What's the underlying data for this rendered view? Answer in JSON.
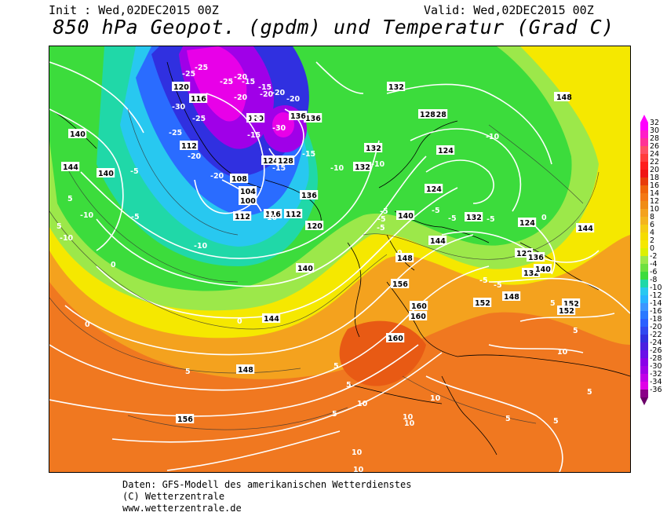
{
  "header": {
    "init": "Init : Wed,02DEC2015 00Z",
    "valid": "Valid: Wed,02DEC2015 00Z",
    "title": "850 hPa Geopot. (gpdm) und Temperatur (Grad C)"
  },
  "footer": {
    "line1": "Daten: GFS-Modell des amerikanischen Wetterdienstes",
    "line2": "(C) Wetterzentrale",
    "line3": "www.wetterzentrale.de"
  },
  "colors": {
    "ocean_dark": "#f07820",
    "orange": "#f4a21e",
    "yellow": "#f5e800",
    "lightgreen": "#9ce84a",
    "green": "#3cdc3c",
    "teal": "#20d8a8",
    "cyan": "#28c8f0",
    "blue": "#2a6cff",
    "darkblue": "#3030e0",
    "purple": "#a000e8",
    "magenta": "#e800e8"
  },
  "map": {
    "geopotential_labels": [
      "148",
      "140",
      "144",
      "136",
      "140",
      "136",
      "132",
      "128",
      "124",
      "120",
      "116",
      "120",
      "112",
      "108",
      "104",
      "100",
      "112",
      "116",
      "112",
      "124",
      "128",
      "136",
      "132",
      "120",
      "140",
      "132",
      "124",
      "128",
      "132",
      "124",
      "128",
      "136",
      "132",
      "140",
      "148",
      "144",
      "140",
      "144",
      "148",
      "152",
      "144",
      "148",
      "156",
      "160",
      "160",
      "152",
      "152",
      "156",
      "160"
    ],
    "temperature_labels": [
      "-25",
      "-25",
      "-20",
      "-15",
      "-15",
      "-20",
      "-25",
      "-20",
      "-30",
      "-25",
      "-25",
      "-20",
      "-30",
      "-20",
      "-20",
      "-15",
      "-15",
      "-10",
      "-10",
      "-10",
      "-10",
      "-5",
      "-5",
      "-10",
      "-10",
      "-5",
      "-5",
      "-5",
      "-5",
      "0",
      "0",
      "0",
      "0",
      "5",
      "5",
      "5",
      "5",
      "5",
      "5",
      "10",
      "10",
      "10",
      "10",
      "10",
      "10",
      "5",
      "5",
      "5",
      "5",
      "10",
      "5",
      "-15",
      "-10",
      "-20",
      "-20",
      "-5",
      "-5",
      "-5",
      "-5",
      "0"
    ]
  },
  "scale": {
    "labels": [
      "32",
      "30",
      "28",
      "26",
      "24",
      "22",
      "20",
      "18",
      "16",
      "14",
      "12",
      "10",
      "8",
      "6",
      "4",
      "2",
      "0",
      "-2",
      "-4",
      "-6",
      "-8",
      "-10",
      "-12",
      "-14",
      "-16",
      "-18",
      "-20",
      "-22",
      "-24",
      "-26",
      "-28",
      "-30",
      "-32",
      "-34",
      "-36"
    ],
    "colors": [
      "#ff00ff",
      "#ff1ec8",
      "#ff3296",
      "#ff5064",
      "#ff3c3c",
      "#ff1e1e",
      "#f01414",
      "#e83c0a",
      "#f0640a",
      "#f47814",
      "#f08c14",
      "#f4a21e",
      "#f4b41e",
      "#f5cc14",
      "#f5dc00",
      "#f5e800",
      "#dcf000",
      "#9ce84a",
      "#6ee040",
      "#3cdc3c",
      "#20d8a8",
      "#28c8f0",
      "#28b4ff",
      "#3c96ff",
      "#2a78ff",
      "#2a60ff",
      "#3048f0",
      "#3030e0",
      "#4a20e0",
      "#6a10e8",
      "#8a00e8",
      "#a000e8",
      "#c000e8",
      "#e000e8",
      "#8a0088"
    ]
  }
}
